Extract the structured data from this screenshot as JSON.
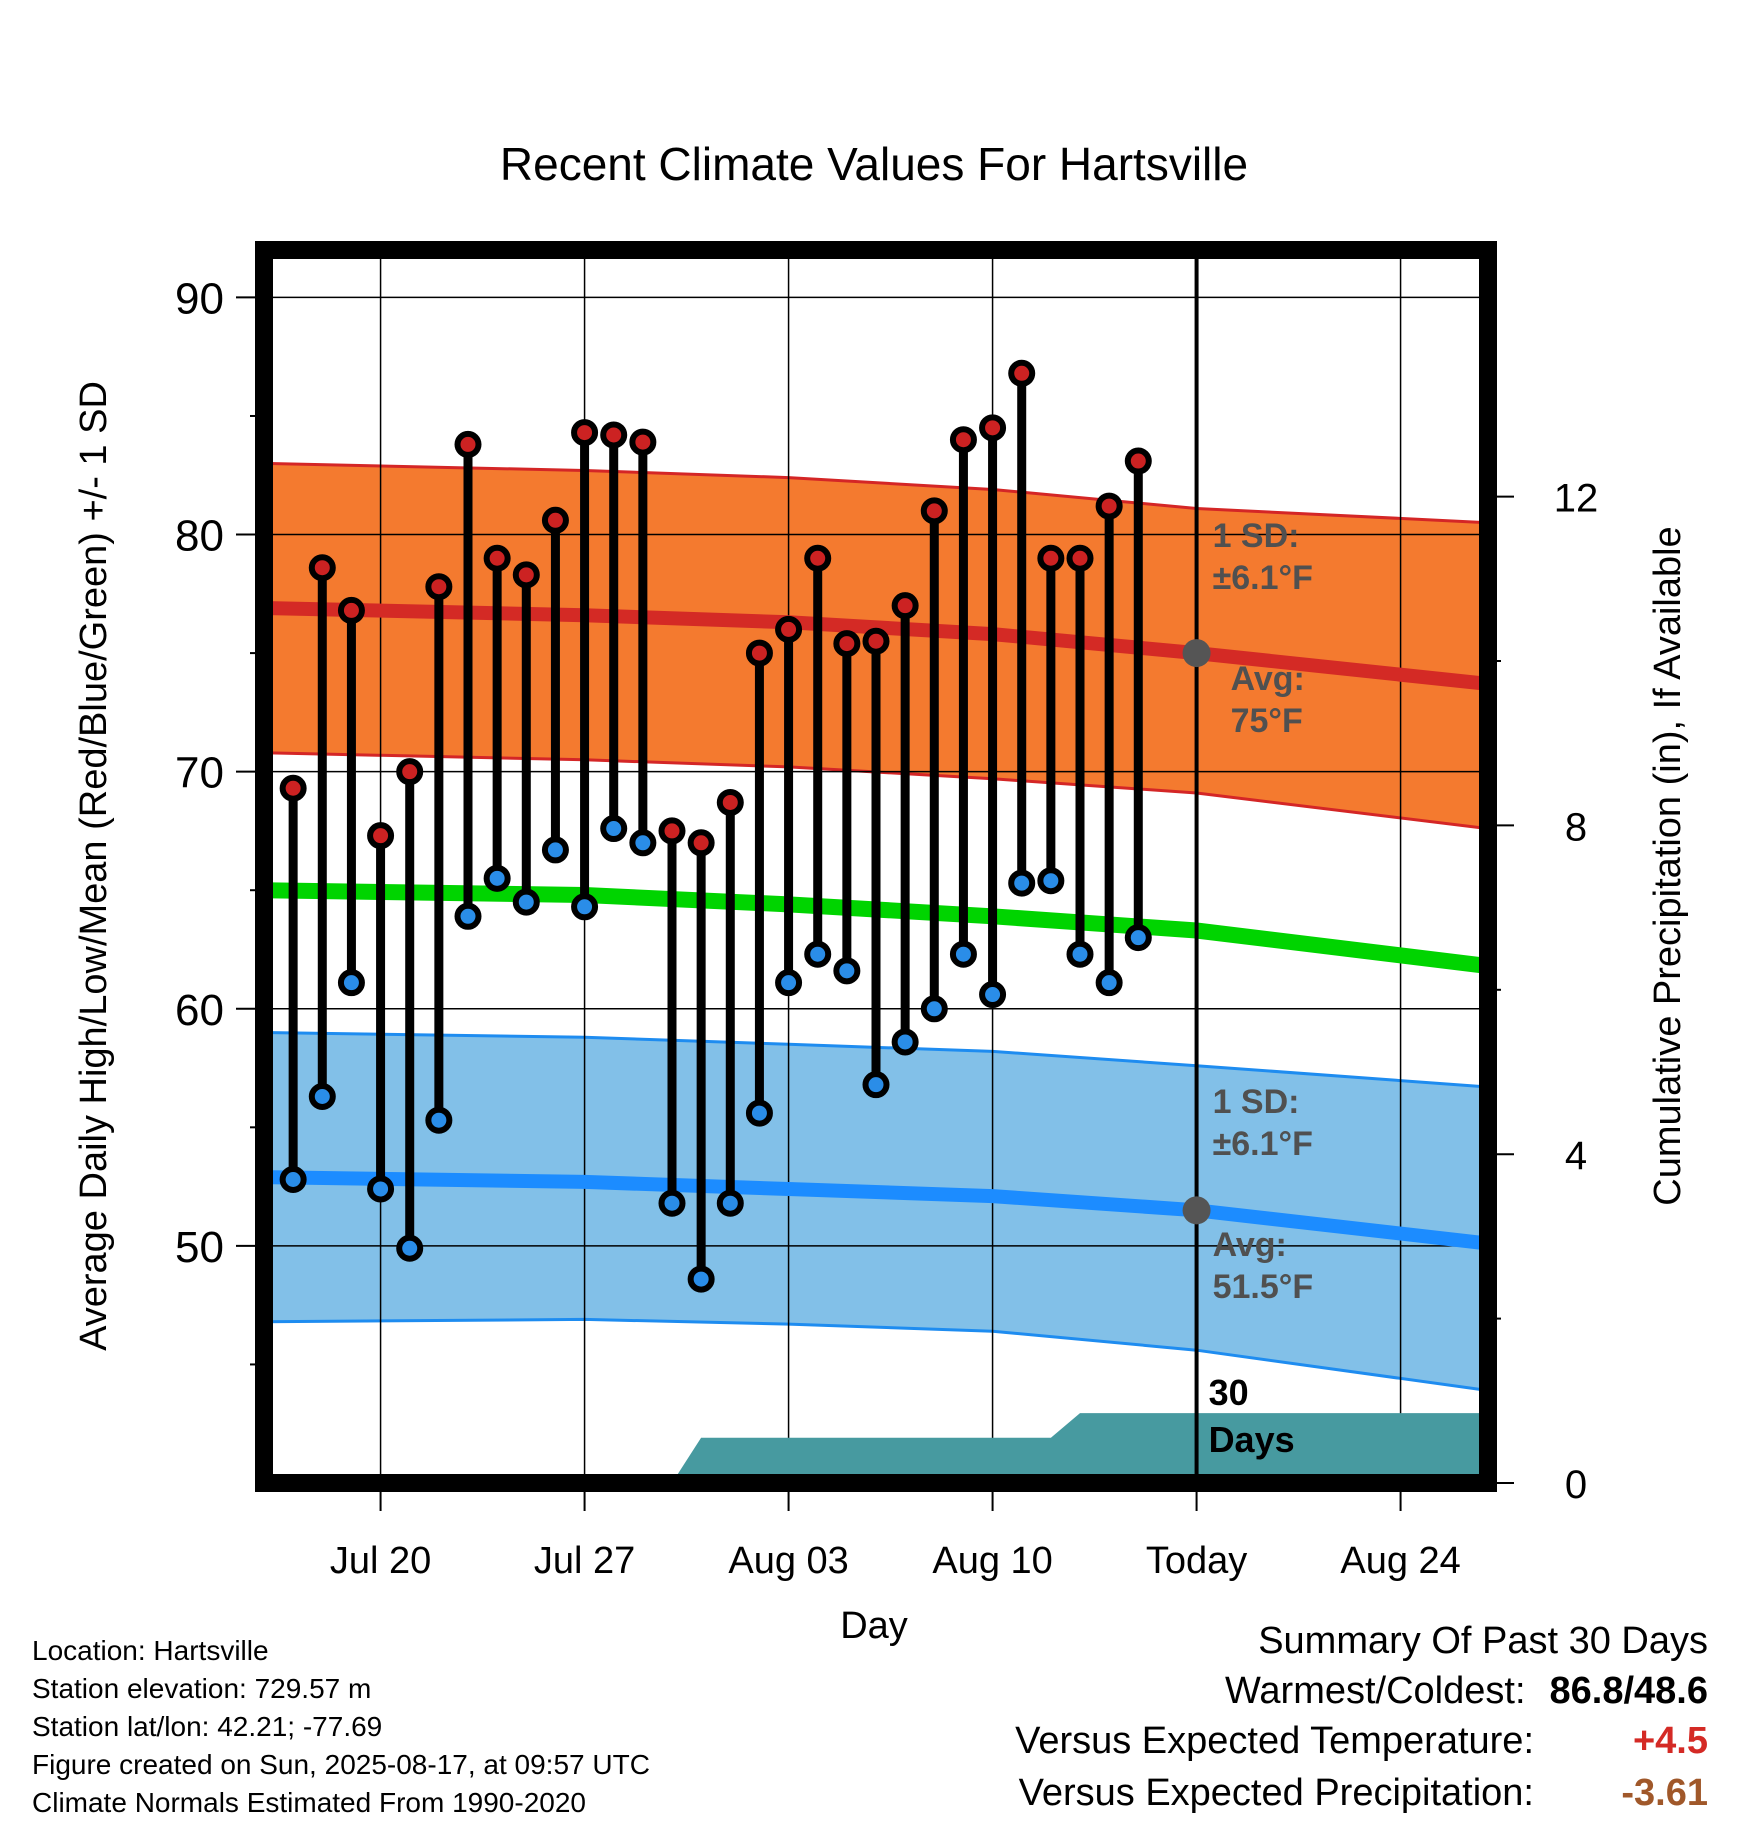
{
  "chart_data": {
    "type": "line",
    "title": "Recent Climate Values For Hartsville",
    "xlabel": "Day",
    "ylabel": "Average Daily High/Low/Mean (Red/Blue/Green) +/- 1 SD",
    "y2label": "Cumulative Precipitation (in), If Available",
    "ylim": [
      40,
      92
    ],
    "y2lim": [
      0,
      15
    ],
    "xlim": [
      "2025-07-16",
      "2025-08-27"
    ],
    "x_tick_labels": [
      "Jul 20",
      "Jul 27",
      "Aug 03",
      "Aug 10",
      "Today",
      "Aug 24"
    ],
    "x_tick_dates": [
      "2025-07-20",
      "2025-07-27",
      "2025-08-03",
      "2025-08-10",
      "2025-08-17",
      "2025-08-24"
    ],
    "y_ticks": [
      50,
      60,
      70,
      80,
      90
    ],
    "y2_ticks": [
      0,
      4,
      8,
      12
    ],
    "grid": true,
    "today_date": "2025-08-17",
    "today_window_label": [
      "30",
      "Days"
    ],
    "daily_dates": [
      "2025-07-17",
      "2025-07-18",
      "2025-07-19",
      "2025-07-20",
      "2025-07-21",
      "2025-07-22",
      "2025-07-23",
      "2025-07-24",
      "2025-07-25",
      "2025-07-26",
      "2025-07-27",
      "2025-07-28",
      "2025-07-29",
      "2025-07-30",
      "2025-07-31",
      "2025-08-01",
      "2025-08-02",
      "2025-08-03",
      "2025-08-04",
      "2025-08-05",
      "2025-08-06",
      "2025-08-07",
      "2025-08-08",
      "2025-08-09",
      "2025-08-10",
      "2025-08-11",
      "2025-08-12",
      "2025-08-13",
      "2025-08-14",
      "2025-08-15",
      "2025-08-16"
    ],
    "daily_high": [
      69.3,
      78.6,
      76.8,
      67.3,
      70.0,
      77.8,
      83.8,
      79.0,
      78.3,
      80.6,
      84.3,
      84.2,
      83.9,
      67.5,
      67.0,
      68.7,
      75.0,
      76.0,
      79.0,
      75.4,
      75.5,
      77.0,
      81.0,
      84.0,
      84.5,
      86.8,
      79.0,
      79.0,
      81.2,
      83.1,
      null
    ],
    "daily_low": [
      52.8,
      56.3,
      61.1,
      52.4,
      49.9,
      55.3,
      63.9,
      65.5,
      64.5,
      66.7,
      64.3,
      67.6,
      67.0,
      51.8,
      48.6,
      51.8,
      55.6,
      61.1,
      62.3,
      61.6,
      56.8,
      58.6,
      60.0,
      62.3,
      60.6,
      65.3,
      65.4,
      62.3,
      61.1,
      63.0,
      null
    ],
    "normal_dates": [
      "2025-07-16",
      "2025-07-27",
      "2025-08-03",
      "2025-08-10",
      "2025-08-17",
      "2025-08-27"
    ],
    "normal_high": [
      76.9,
      76.6,
      76.3,
      75.8,
      75.0,
      73.7
    ],
    "normal_high_sd_upper": [
      83.0,
      82.7,
      82.4,
      81.9,
      81.1,
      80.5
    ],
    "normal_high_sd_lower": [
      70.8,
      70.5,
      70.2,
      69.7,
      69.1,
      67.6
    ],
    "normal_mean": [
      65.0,
      64.8,
      64.4,
      63.9,
      63.3,
      61.8
    ],
    "normal_low": [
      52.9,
      52.7,
      52.4,
      52.1,
      51.5,
      50.1
    ],
    "normal_low_sd_upper": [
      59.0,
      58.8,
      58.5,
      58.2,
      57.6,
      56.7
    ],
    "normal_low_sd_lower": [
      46.8,
      46.9,
      46.7,
      46.4,
      45.6,
      43.9
    ],
    "precip_dates": [
      "2025-07-30",
      "2025-07-31",
      "2025-08-12",
      "2025-08-13",
      "2025-08-27"
    ],
    "precip_cumulative": [
      0.0,
      0.55,
      0.55,
      0.85,
      0.85
    ],
    "annotations": {
      "high_sd_label": [
        "1 SD:",
        "±6.1°F"
      ],
      "high_avg_label": [
        "Avg:",
        "75°F"
      ],
      "low_sd_label": [
        "1 SD:",
        "±6.1°F"
      ],
      "low_avg_label": [
        "Avg:",
        "51.5°F"
      ]
    },
    "colors": {
      "high_band": "#f47a2f",
      "high_band_edge": "#d42626",
      "high_normal": "#d42a25",
      "mean_normal": "#00d400",
      "low_band": "#82c0e8",
      "low_band_edge": "#1e8cf0",
      "low_normal": "#1c8cff",
      "high_dot": "#cc2222",
      "low_dot": "#2a8de8",
      "precip": "#479aa0",
      "annotation": "#505050",
      "today_dot": "#555555"
    }
  },
  "info": {
    "location": "Location: Hartsville",
    "elevation": "Station elevation: 729.57 m",
    "latlon": "Station lat/lon: 42.21; -77.69",
    "created": "Figure created on Sun, 2025-08-17, at 09:57 UTC",
    "normals": "Climate Normals Estimated From 1990-2020"
  },
  "summary": {
    "title": "Summary Of Past 30 Days",
    "warm_cold_label": "Warmest/Coldest:",
    "warm_cold_value": "86.8/48.6",
    "temp_label": "Versus Expected Temperature:",
    "temp_value": "+4.5",
    "temp_color": "#d42a25",
    "precip_label": "Versus Expected Precipitation:",
    "precip_value": "-3.61",
    "precip_color": "#a0582a"
  }
}
